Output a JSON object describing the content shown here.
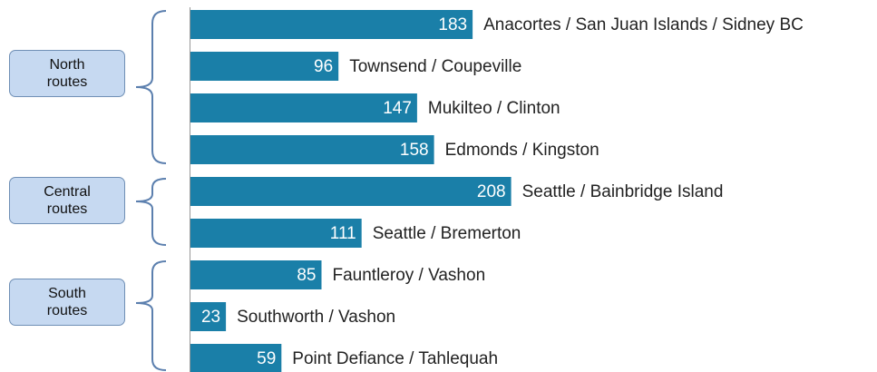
{
  "chart_data": {
    "type": "bar",
    "orientation": "horizontal",
    "categories": [
      "Anacortes / San Juan Islands / Sidney BC",
      "Townsend / Coupeville",
      "Mukilteo / Clinton",
      "Edmonds / Kingston",
      "Seattle / Bainbridge Island",
      "Seattle / Bremerton",
      "Fauntleroy / Vashon",
      "Southworth / Vashon",
      "Point Defiance / Tahlequah"
    ],
    "values": [
      183,
      96,
      147,
      158,
      208,
      111,
      85,
      23,
      59
    ],
    "color": "#1a7fa8",
    "groups": [
      "North routes",
      "Central routes",
      "South routes"
    ]
  }
}
